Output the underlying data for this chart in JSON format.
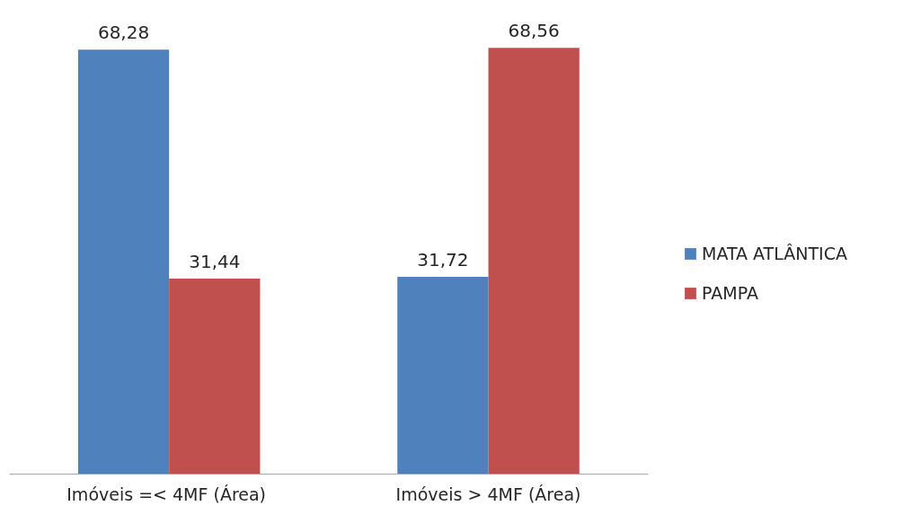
{
  "chart_data": {
    "type": "bar",
    "categories": [
      "Imóveis  =< 4MF (Área)",
      "Imóveis > 4MF (Área)"
    ],
    "series": [
      {
        "name": "MATA ATLÂNTICA",
        "color": "#4f81bd",
        "values": [
          68.28,
          31.72
        ],
        "value_labels": [
          "68,28",
          "31,72"
        ]
      },
      {
        "name": "PAMPA",
        "color": "#c0504d",
        "values": [
          31.44,
          68.56
        ],
        "value_labels": [
          "31,44",
          "68,56"
        ]
      }
    ],
    "tick_labels": "x",
    "legend": "right",
    "grid": false
  }
}
